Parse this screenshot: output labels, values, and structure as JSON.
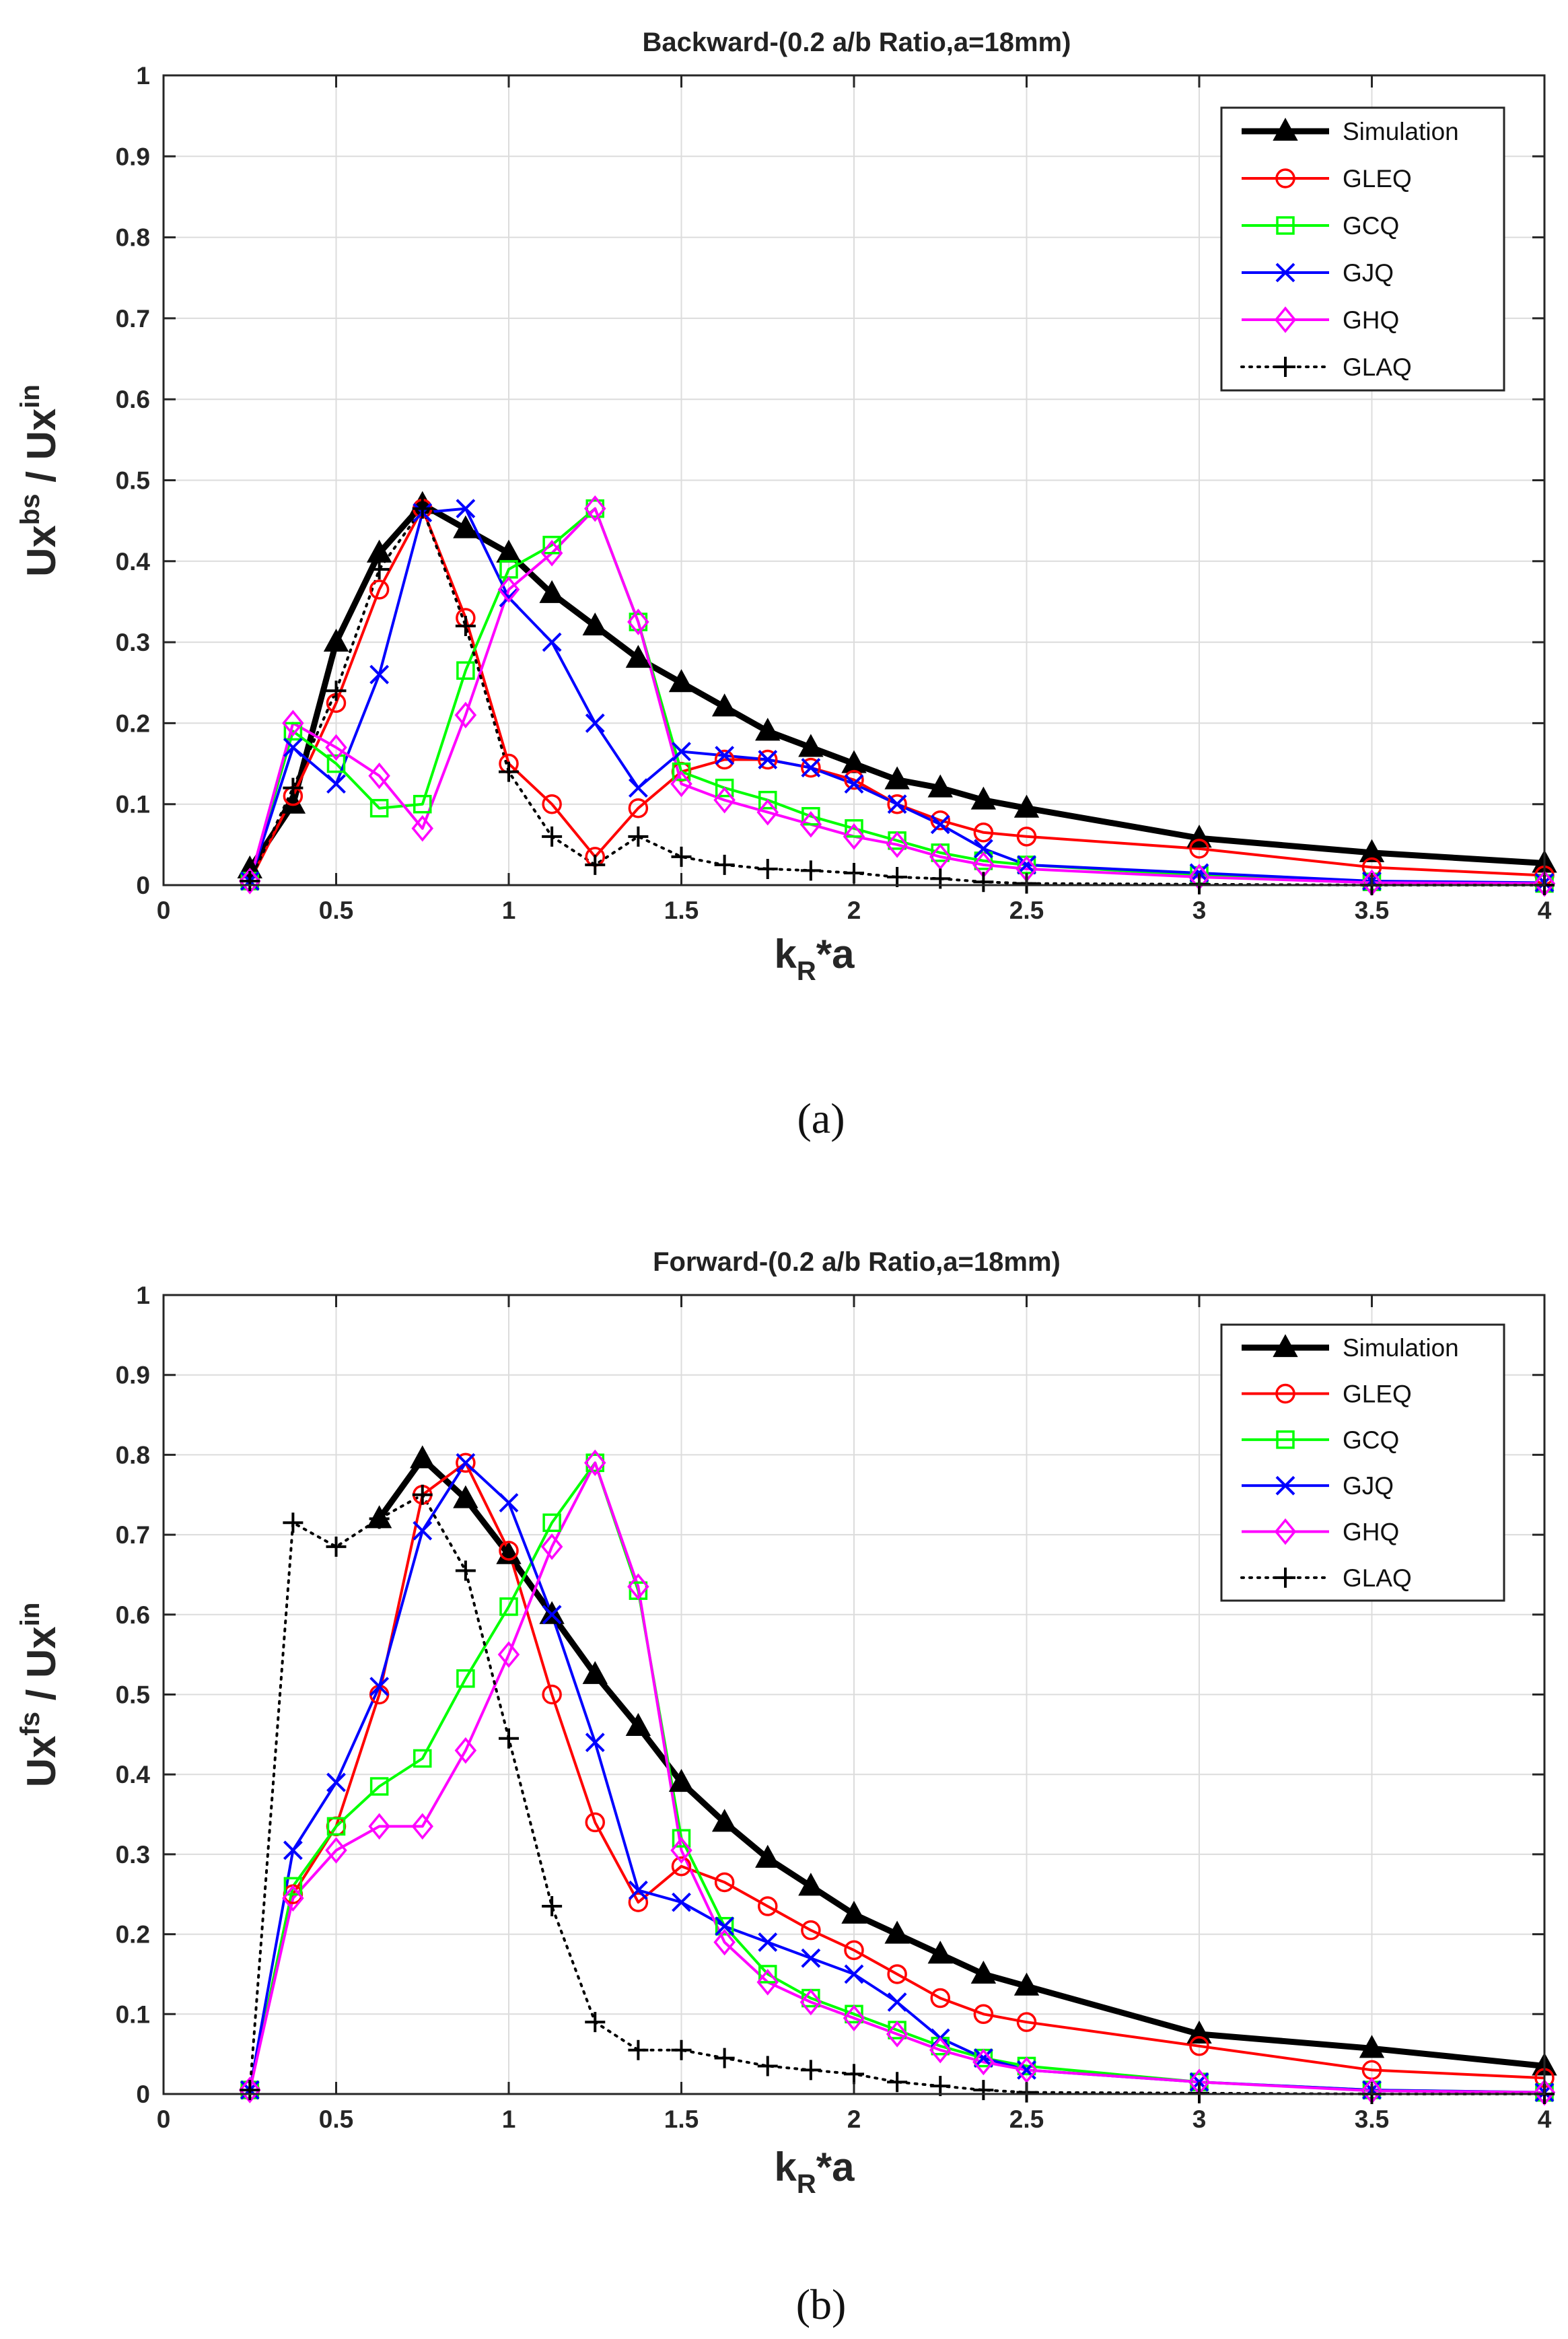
{
  "chart_data": [
    {
      "type": "line",
      "title": "Backward-(0.2 a/b Ratio,a=18mm)",
      "xlabel": {
        "main": "k",
        "sub": "R",
        "rest": "*a"
      },
      "ylabel": {
        "base1": "Ux",
        "sup1": "bs",
        "mid": " / Ux",
        "sup2": "in"
      },
      "xlim": [
        0,
        4
      ],
      "ylim": [
        0,
        1
      ],
      "xticks": [
        "0",
        "0.5",
        "1",
        "1.5",
        "2",
        "2.5",
        "3",
        "3.5",
        "4"
      ],
      "yticks": [
        "0",
        "0.1",
        "0.2",
        "0.3",
        "0.4",
        "0.5",
        "0.6",
        "0.7",
        "0.8",
        "0.9",
        "1"
      ],
      "grid": true,
      "legend_position": "top-right",
      "caption": "(a)",
      "series": [
        {
          "name": "Simulation",
          "color": "#000000",
          "marker": "triangle",
          "linestyle": "solid",
          "thick": true,
          "x": [
            0.25,
            0.375,
            0.5,
            0.625,
            0.75,
            0.875,
            1.0,
            1.125,
            1.25,
            1.375,
            1.5,
            1.625,
            1.75,
            1.875,
            2.0,
            2.125,
            2.25,
            2.375,
            2.5,
            3.0,
            3.5,
            4.0
          ],
          "y": [
            0.02,
            0.1,
            0.3,
            0.41,
            0.47,
            0.44,
            0.41,
            0.36,
            0.32,
            0.28,
            0.25,
            0.22,
            0.19,
            0.17,
            0.15,
            0.13,
            0.12,
            0.105,
            0.095,
            0.058,
            0.04,
            0.027
          ]
        },
        {
          "name": "GLEQ",
          "color": "#ff0000",
          "marker": "circle",
          "linestyle": "solid",
          "thick": false,
          "x": [
            0.25,
            0.375,
            0.5,
            0.625,
            0.75,
            0.875,
            1.0,
            1.125,
            1.25,
            1.375,
            1.5,
            1.625,
            1.75,
            1.875,
            2.0,
            2.125,
            2.25,
            2.375,
            2.5,
            3.0,
            3.5,
            4.0
          ],
          "y": [
            0.005,
            0.11,
            0.225,
            0.365,
            0.465,
            0.33,
            0.15,
            0.1,
            0.035,
            0.095,
            0.14,
            0.155,
            0.155,
            0.145,
            0.13,
            0.1,
            0.08,
            0.065,
            0.06,
            0.045,
            0.022,
            0.012
          ]
        },
        {
          "name": "GCQ",
          "color": "#00ff00",
          "marker": "square",
          "linestyle": "solid",
          "thick": false,
          "x": [
            0.25,
            0.375,
            0.5,
            0.625,
            0.75,
            0.875,
            1.0,
            1.125,
            1.25,
            1.375,
            1.5,
            1.625,
            1.75,
            1.875,
            2.0,
            2.125,
            2.25,
            2.375,
            2.5,
            3.0,
            3.5,
            4.0
          ],
          "y": [
            0.005,
            0.19,
            0.15,
            0.095,
            0.1,
            0.265,
            0.39,
            0.42,
            0.465,
            0.325,
            0.14,
            0.12,
            0.105,
            0.085,
            0.07,
            0.055,
            0.04,
            0.03,
            0.025,
            0.012,
            0.004,
            0.002
          ]
        },
        {
          "name": "GJQ",
          "color": "#0000ff",
          "marker": "x",
          "linestyle": "solid",
          "thick": false,
          "x": [
            0.25,
            0.375,
            0.5,
            0.625,
            0.75,
            0.875,
            1.0,
            1.125,
            1.25,
            1.375,
            1.5,
            1.625,
            1.75,
            1.875,
            2.0,
            2.125,
            2.25,
            2.375,
            2.5,
            3.0,
            3.5,
            4.0
          ],
          "y": [
            0.005,
            0.17,
            0.125,
            0.26,
            0.46,
            0.465,
            0.355,
            0.3,
            0.2,
            0.12,
            0.165,
            0.16,
            0.155,
            0.145,
            0.125,
            0.1,
            0.075,
            0.045,
            0.025,
            0.015,
            0.005,
            0.003
          ]
        },
        {
          "name": "GHQ",
          "color": "#ff00ff",
          "marker": "diamond",
          "linestyle": "solid",
          "thick": false,
          "x": [
            0.25,
            0.375,
            0.5,
            0.625,
            0.75,
            0.875,
            1.0,
            1.125,
            1.25,
            1.375,
            1.5,
            1.625,
            1.75,
            1.875,
            2.0,
            2.125,
            2.25,
            2.375,
            2.5,
            3.0,
            3.5,
            4.0
          ],
          "y": [
            0.005,
            0.2,
            0.17,
            0.135,
            0.07,
            0.21,
            0.365,
            0.41,
            0.465,
            0.325,
            0.125,
            0.105,
            0.09,
            0.075,
            0.06,
            0.05,
            0.035,
            0.025,
            0.02,
            0.01,
            0.003,
            0.002
          ]
        },
        {
          "name": "GLAQ",
          "color": "#000000",
          "marker": "plus",
          "linestyle": "dotted",
          "thick": false,
          "x": [
            0.25,
            0.375,
            0.5,
            0.625,
            0.75,
            0.875,
            1.0,
            1.125,
            1.25,
            1.375,
            1.5,
            1.625,
            1.75,
            1.875,
            2.0,
            2.125,
            2.25,
            2.375,
            2.5,
            3.0,
            3.5,
            4.0
          ],
          "y": [
            0.005,
            0.12,
            0.24,
            0.39,
            0.465,
            0.32,
            0.14,
            0.06,
            0.025,
            0.06,
            0.035,
            0.025,
            0.02,
            0.018,
            0.015,
            0.01,
            0.008,
            0.004,
            0.002,
            0.001,
            0.0,
            0.0
          ]
        }
      ]
    },
    {
      "type": "line",
      "title": "Forward-(0.2 a/b Ratio,a=18mm)",
      "xlabel": {
        "main": "k",
        "sub": "R",
        "rest": "*a"
      },
      "ylabel": {
        "base1": "Ux",
        "sup1": "fs",
        "mid": " / Ux",
        "sup2": "in"
      },
      "xlim": [
        0,
        4
      ],
      "ylim": [
        0,
        1
      ],
      "xticks": [
        "0",
        "0.5",
        "1",
        "1.5",
        "2",
        "2.5",
        "3",
        "3.5",
        "4"
      ],
      "yticks": [
        "0",
        "0.1",
        "0.2",
        "0.3",
        "0.4",
        "0.5",
        "0.6",
        "0.7",
        "0.8",
        "0.9",
        "1"
      ],
      "grid": true,
      "legend_position": "top-right",
      "caption": "(b)",
      "series": [
        {
          "name": "Simulation",
          "color": "#000000",
          "marker": "triangle",
          "linestyle": "solid",
          "thick": true,
          "x": [
            0.625,
            0.75,
            0.875,
            1.0,
            1.125,
            1.25,
            1.375,
            1.5,
            1.625,
            1.75,
            1.875,
            2.0,
            2.125,
            2.25,
            2.375,
            2.5,
            3.0,
            3.5,
            4.0
          ],
          "y": [
            0.72,
            0.795,
            0.745,
            0.675,
            0.6,
            0.525,
            0.46,
            0.39,
            0.34,
            0.295,
            0.26,
            0.225,
            0.2,
            0.175,
            0.15,
            0.135,
            0.075,
            0.057,
            0.035
          ]
        },
        {
          "name": "GLEQ",
          "color": "#ff0000",
          "marker": "circle",
          "linestyle": "solid",
          "thick": false,
          "x": [
            0.25,
            0.375,
            0.5,
            0.625,
            0.75,
            0.875,
            1.0,
            1.125,
            1.25,
            1.375,
            1.5,
            1.625,
            1.75,
            1.875,
            2.0,
            2.125,
            2.25,
            2.375,
            2.5,
            3.0,
            3.5,
            4.0
          ],
          "y": [
            0.005,
            0.25,
            0.335,
            0.5,
            0.75,
            0.79,
            0.68,
            0.5,
            0.34,
            0.24,
            0.285,
            0.265,
            0.235,
            0.205,
            0.18,
            0.15,
            0.12,
            0.1,
            0.09,
            0.06,
            0.03,
            0.02
          ]
        },
        {
          "name": "GCQ",
          "color": "#00ff00",
          "marker": "square",
          "linestyle": "solid",
          "thick": false,
          "x": [
            0.25,
            0.375,
            0.5,
            0.625,
            0.75,
            0.875,
            1.0,
            1.125,
            1.25,
            1.375,
            1.5,
            1.625,
            1.75,
            1.875,
            2.0,
            2.125,
            2.25,
            2.375,
            2.5,
            3.0,
            3.5,
            4.0
          ],
          "y": [
            0.005,
            0.26,
            0.335,
            0.385,
            0.42,
            0.52,
            0.61,
            0.715,
            0.79,
            0.63,
            0.32,
            0.21,
            0.15,
            0.12,
            0.1,
            0.08,
            0.06,
            0.045,
            0.035,
            0.015,
            0.005,
            0.002
          ]
        },
        {
          "name": "GJQ",
          "color": "#0000ff",
          "marker": "x",
          "linestyle": "solid",
          "thick": false,
          "x": [
            0.25,
            0.375,
            0.5,
            0.625,
            0.75,
            0.875,
            1.0,
            1.125,
            1.25,
            1.375,
            1.5,
            1.625,
            1.75,
            1.875,
            2.0,
            2.125,
            2.25,
            2.375,
            2.5,
            3.0,
            3.5,
            4.0
          ],
          "y": [
            0.005,
            0.305,
            0.39,
            0.51,
            0.705,
            0.79,
            0.74,
            0.6,
            0.44,
            0.255,
            0.24,
            0.21,
            0.19,
            0.17,
            0.15,
            0.115,
            0.07,
            0.045,
            0.03,
            0.015,
            0.005,
            0.002
          ]
        },
        {
          "name": "GHQ",
          "color": "#ff00ff",
          "marker": "diamond",
          "linestyle": "solid",
          "thick": false,
          "x": [
            0.25,
            0.375,
            0.5,
            0.625,
            0.75,
            0.875,
            1.0,
            1.125,
            1.25,
            1.375,
            1.5,
            1.625,
            1.75,
            1.875,
            2.0,
            2.125,
            2.25,
            2.375,
            2.5,
            3.0,
            3.5,
            4.0
          ],
          "y": [
            0.005,
            0.245,
            0.305,
            0.335,
            0.335,
            0.43,
            0.55,
            0.685,
            0.79,
            0.635,
            0.305,
            0.19,
            0.14,
            0.115,
            0.095,
            0.075,
            0.055,
            0.04,
            0.03,
            0.015,
            0.004,
            0.002
          ]
        },
        {
          "name": "GLAQ",
          "color": "#000000",
          "marker": "plus",
          "linestyle": "dotted",
          "thick": false,
          "x": [
            0.25,
            0.375,
            0.5,
            0.625,
            0.75,
            0.875,
            1.0,
            1.125,
            1.25,
            1.375,
            1.5,
            1.625,
            1.75,
            1.875,
            2.0,
            2.125,
            2.25,
            2.375,
            2.5,
            3.0,
            3.5,
            4.0
          ],
          "y": [
            0.005,
            0.715,
            0.685,
            0.72,
            0.75,
            0.655,
            0.445,
            0.235,
            0.09,
            0.055,
            0.055,
            0.045,
            0.035,
            0.03,
            0.025,
            0.015,
            0.01,
            0.005,
            0.002,
            0.001,
            0.0,
            0.0
          ]
        }
      ]
    }
  ]
}
